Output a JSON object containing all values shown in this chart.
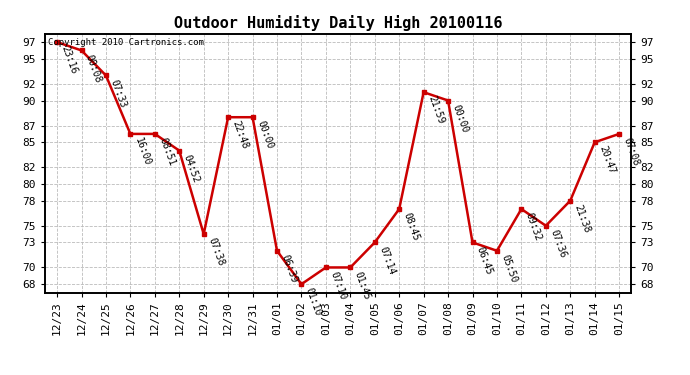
{
  "title": "Outdoor Humidity Daily High 20100116",
  "copyright_text": "Copyright 2010 Cartronics.com",
  "x_labels": [
    "12/23",
    "12/24",
    "12/25",
    "12/26",
    "12/27",
    "12/28",
    "12/29",
    "12/30",
    "12/31",
    "01/01",
    "01/02",
    "01/03",
    "01/04",
    "01/05",
    "01/06",
    "01/07",
    "01/08",
    "01/09",
    "01/10",
    "01/11",
    "01/12",
    "01/13",
    "01/14",
    "01/15"
  ],
  "y_values": [
    97,
    96,
    93,
    86,
    86,
    84,
    74,
    88,
    88,
    72,
    68,
    70,
    70,
    73,
    77,
    91,
    90,
    73,
    72,
    77,
    75,
    78,
    85,
    86
  ],
  "time_labels": [
    "23:16",
    "00:08",
    "07:33",
    "16:00",
    "08:51",
    "04:52",
    "07:38",
    "22:48",
    "00:00",
    "06:39",
    "01:10",
    "07:10",
    "01:45",
    "07:14",
    "08:45",
    "21:59",
    "00:00",
    "06:45",
    "05:50",
    "09:32",
    "07:36",
    "21:38",
    "20:47",
    "07:08"
  ],
  "line_color": "#cc0000",
  "marker_color": "#cc0000",
  "bg_color": "#ffffff",
  "grid_color": "#bbbbbb",
  "ylim_min": 67,
  "ylim_max": 98,
  "yticks": [
    68,
    70,
    73,
    75,
    78,
    80,
    82,
    85,
    87,
    90,
    92,
    95,
    97
  ],
  "title_fontsize": 11,
  "label_fontsize": 7,
  "tick_fontsize": 8
}
